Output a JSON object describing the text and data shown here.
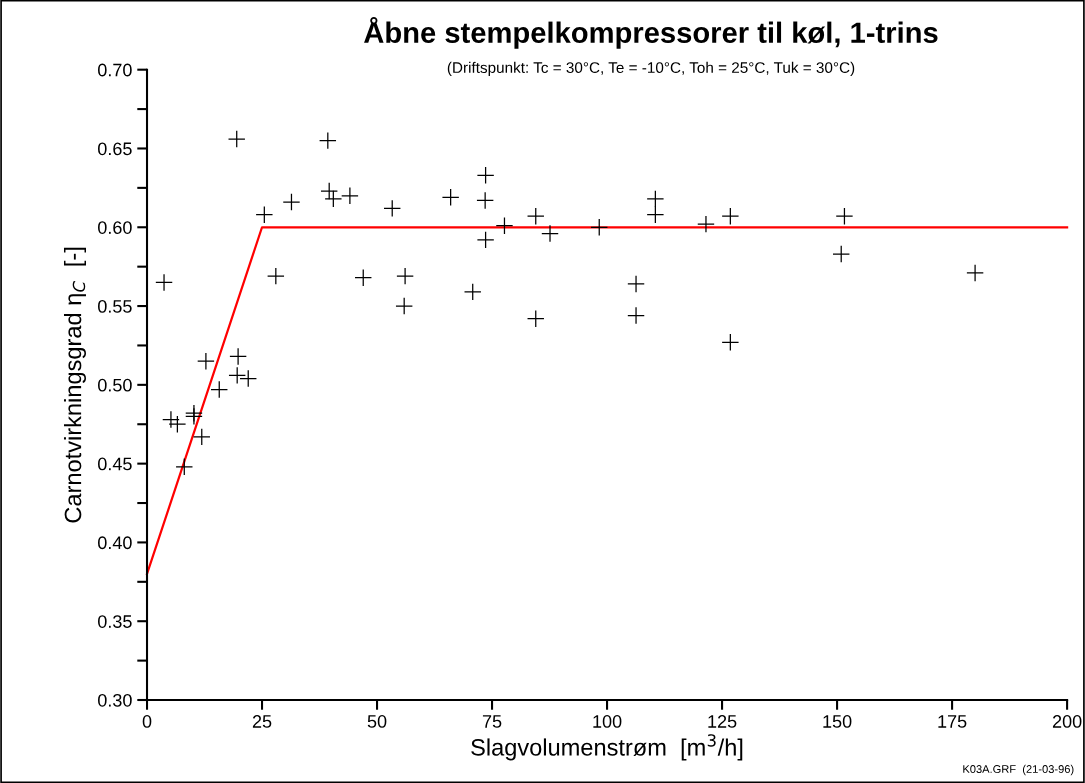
{
  "chart_data": {
    "type": "scatter",
    "title": "Åbne stempelkompressorer til køl, 1-trins",
    "subtitle": "(Driftspunkt: Tc = 30°C, Te = -10°C, Toh = 25°C, Tuk = 30°C)",
    "xlabel": "Slagvolumenstrøm  [m$^{3}$/h]",
    "ylabel": "Carnotvirkningsgrad η$_{C}$  [-]",
    "annotations": [
      "K03A.GRF  (21-03-96)"
    ],
    "xlim": [
      0,
      200
    ],
    "xticks": [
      0,
      25,
      50,
      75,
      100,
      125,
      150,
      175,
      200
    ],
    "ylim": [
      0.3,
      0.7
    ],
    "yticks": [
      {
        "value": 0.3,
        "label": "0.30"
      },
      {
        "value": 0.325,
        "label": null
      },
      {
        "value": 0.35,
        "label": "0.35"
      },
      {
        "value": 0.375,
        "label": null
      },
      {
        "value": 0.4,
        "label": "0.40"
      },
      {
        "value": 0.425,
        "label": null
      },
      {
        "value": 0.45,
        "label": "0.45"
      },
      {
        "value": 0.475,
        "label": null
      },
      {
        "value": 0.5,
        "label": "0.50"
      },
      {
        "value": 0.525,
        "label": null
      },
      {
        "value": 0.55,
        "label": "0.55"
      },
      {
        "value": 0.575,
        "label": null
      },
      {
        "value": 0.6,
        "label": "0.60"
      },
      {
        "value": 0.625,
        "label": null
      },
      {
        "value": 0.65,
        "label": "0.65"
      },
      {
        "value": 0.675,
        "label": null
      },
      {
        "value": 0.7,
        "label": "0.70"
      }
    ],
    "grid": false,
    "legend": false,
    "series": [
      {
        "color": "#000000",
        "marker": "cross",
        "x": [
          19.5,
          39.3,
          25.5,
          31.4,
          39.6,
          40.5,
          44.1,
          53.3,
          3.7,
          28.0,
          47.0,
          56.1,
          55.9,
          12.8,
          19.8,
          19.6,
          22.0,
          15.7,
          5.2,
          6.6,
          10.2,
          10.2,
          11.9,
          8.1,
          66.0,
          73.6,
          73.5,
          73.6,
          77.7,
          70.8,
          84.5,
          87.6,
          84.5,
          98.3,
          110.5,
          110.5,
          106.3,
          106.3,
          121.5,
          126.8,
          126.8,
          151.6,
          150.9,
          180.0
        ],
        "values": [
          0.656,
          0.655,
          0.608,
          0.616,
          0.623,
          0.618,
          0.62,
          0.612,
          0.565,
          0.569,
          0.568,
          0.569,
          0.55,
          0.515,
          0.518,
          0.506,
          0.504,
          0.497,
          0.478,
          0.475,
          0.482,
          0.48,
          0.467,
          0.448,
          0.619,
          0.633,
          0.617,
          0.592,
          0.601,
          0.559,
          0.607,
          0.596,
          0.542,
          0.6,
          0.618,
          0.608,
          0.564,
          0.544,
          0.602,
          0.607,
          0.527,
          0.607,
          0.583,
          0.571
        ]
      },
      {
        "type": "line",
        "color": "#ff0000",
        "marker": "none",
        "line_style": "solid",
        "x": [
          0,
          25,
          200
        ],
        "values": [
          0.38,
          0.6,
          0.6
        ]
      }
    ]
  }
}
